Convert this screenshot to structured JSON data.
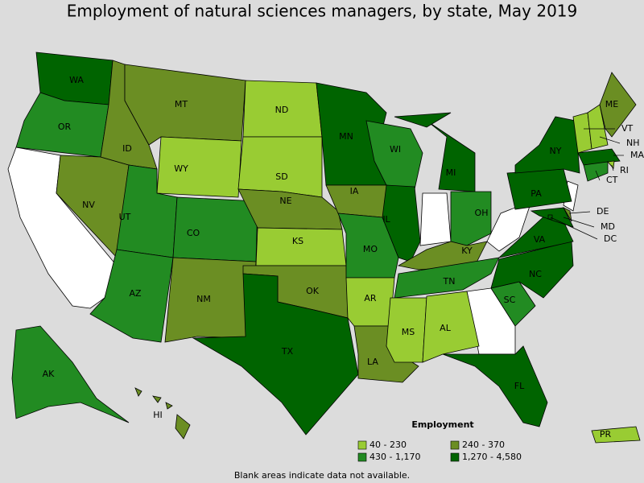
{
  "title": "Employment of natural sciences managers, by state, May 2019",
  "legend": {
    "title": "Employment",
    "classes": [
      {
        "label": "40 - 230",
        "color": "#99cc33"
      },
      {
        "label": "240 - 370",
        "color": "#6b8e23"
      },
      {
        "label": "430 - 1,170",
        "color": "#228b22"
      },
      {
        "label": "1,270 - 4,580",
        "color": "#006400"
      }
    ]
  },
  "states": [
    {
      "abbr": "WA",
      "class": 3
    },
    {
      "abbr": "OR",
      "class": 2
    },
    {
      "abbr": "NV",
      "class": 1
    },
    {
      "abbr": "ID",
      "class": 1
    },
    {
      "abbr": "MT",
      "class": 1
    },
    {
      "abbr": "WY",
      "class": 0
    },
    {
      "abbr": "UT",
      "class": 2
    },
    {
      "abbr": "AZ",
      "class": 2
    },
    {
      "abbr": "CO",
      "class": 2
    },
    {
      "abbr": "NM",
      "class": 1
    },
    {
      "abbr": "ND",
      "class": 0
    },
    {
      "abbr": "SD",
      "class": 0
    },
    {
      "abbr": "NE",
      "class": 1
    },
    {
      "abbr": "KS",
      "class": 0
    },
    {
      "abbr": "OK",
      "class": 1
    },
    {
      "abbr": "TX",
      "class": 3
    },
    {
      "abbr": "MN",
      "class": 3
    },
    {
      "abbr": "IA",
      "class": 1
    },
    {
      "abbr": "MO",
      "class": 2
    },
    {
      "abbr": "AR",
      "class": 0
    },
    {
      "abbr": "LA",
      "class": 1
    },
    {
      "abbr": "WI",
      "class": 2
    },
    {
      "abbr": "IL",
      "class": 3
    },
    {
      "abbr": "MI",
      "class": 3
    },
    {
      "abbr": "OH",
      "class": 2
    },
    {
      "abbr": "KY",
      "class": 1
    },
    {
      "abbr": "TN",
      "class": 2
    },
    {
      "abbr": "MS",
      "class": 0
    },
    {
      "abbr": "AL",
      "class": 0
    },
    {
      "abbr": "FL",
      "class": 3
    },
    {
      "abbr": "SC",
      "class": 2
    },
    {
      "abbr": "NC",
      "class": 3
    },
    {
      "abbr": "VA",
      "class": 3
    },
    {
      "abbr": "PA",
      "class": 3
    },
    {
      "abbr": "NY",
      "class": 3
    },
    {
      "abbr": "VT",
      "class": 0
    },
    {
      "abbr": "NH",
      "class": 0
    },
    {
      "abbr": "ME",
      "class": 1
    },
    {
      "abbr": "MA",
      "class": 3
    },
    {
      "abbr": "RI",
      "class": 0
    },
    {
      "abbr": "CT",
      "class": 2
    },
    {
      "abbr": "DE",
      "class": 1
    },
    {
      "abbr": "MD",
      "class": 3
    },
    {
      "abbr": "DC",
      "class": 3
    },
    {
      "abbr": "AK",
      "class": 2
    },
    {
      "abbr": "HI",
      "class": 1
    },
    {
      "abbr": "PR",
      "class": 0
    }
  ],
  "note": "Blank areas indicate data not available."
}
